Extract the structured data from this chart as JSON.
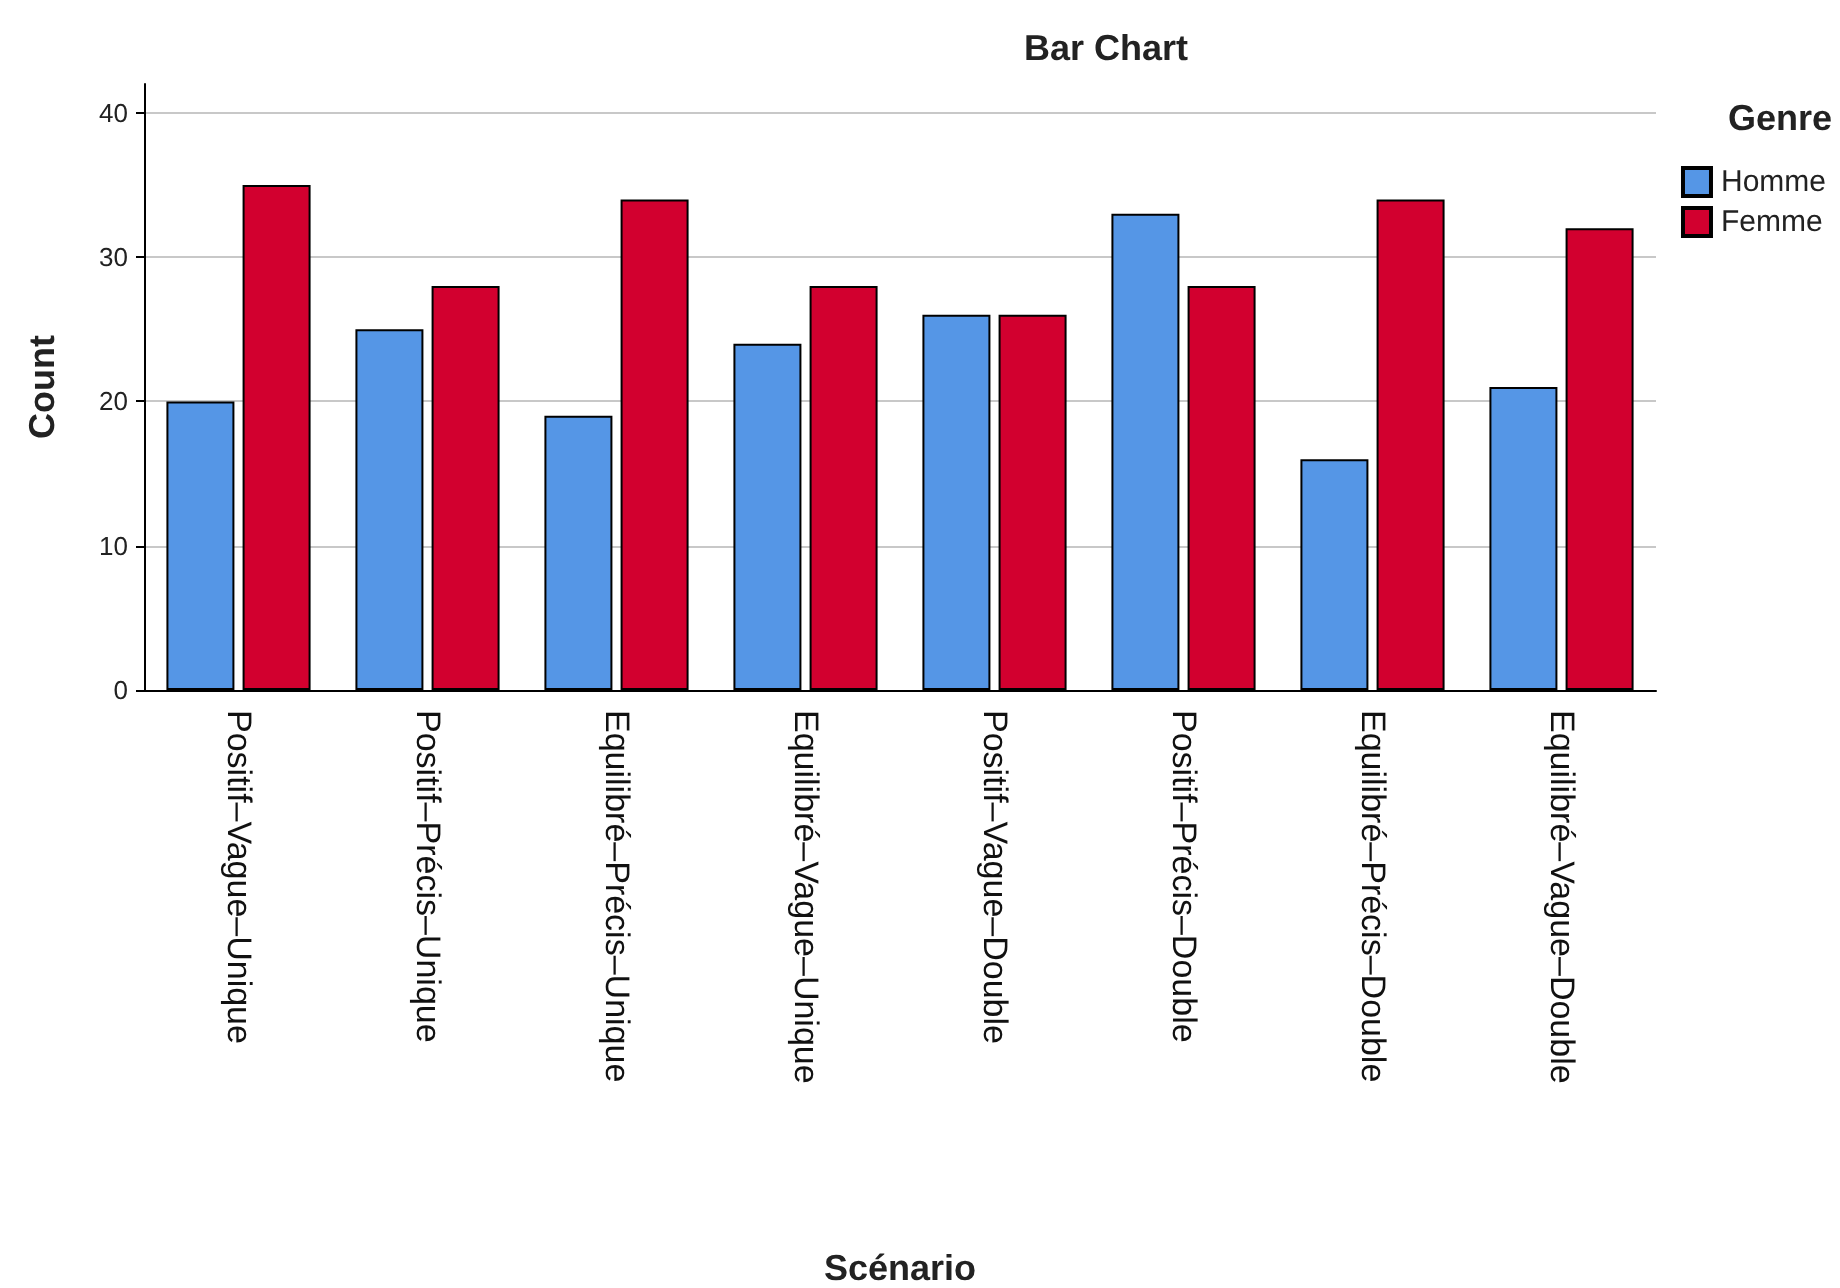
{
  "chart_data": {
    "type": "bar",
    "title": "Bar Chart",
    "xlabel": "Scénario",
    "ylabel": "Count",
    "legend_title": "Genre",
    "categories": [
      "Positif–Vague–Unique",
      "Positif–Précis–Unique",
      "Equilibré–Précis–Unique",
      "Equilibré–Vague–Unique",
      "Positif–Vague–Double",
      "Positif–Précis–Double",
      "Equilibré–Précis–Double",
      "Equilibré–Vague–Double"
    ],
    "series": [
      {
        "name": "Homme",
        "color": "#5596e6",
        "values": [
          20,
          25,
          19,
          24,
          26,
          33,
          16,
          21
        ]
      },
      {
        "name": "Femme",
        "color": "#d2002f",
        "values": [
          35,
          28,
          34,
          28,
          26,
          28,
          34,
          32
        ]
      }
    ],
    "ylim": [
      0,
      42
    ],
    "yticks": [
      0,
      10,
      20,
      30,
      40
    ],
    "grid": "y",
    "legend": "top right"
  }
}
